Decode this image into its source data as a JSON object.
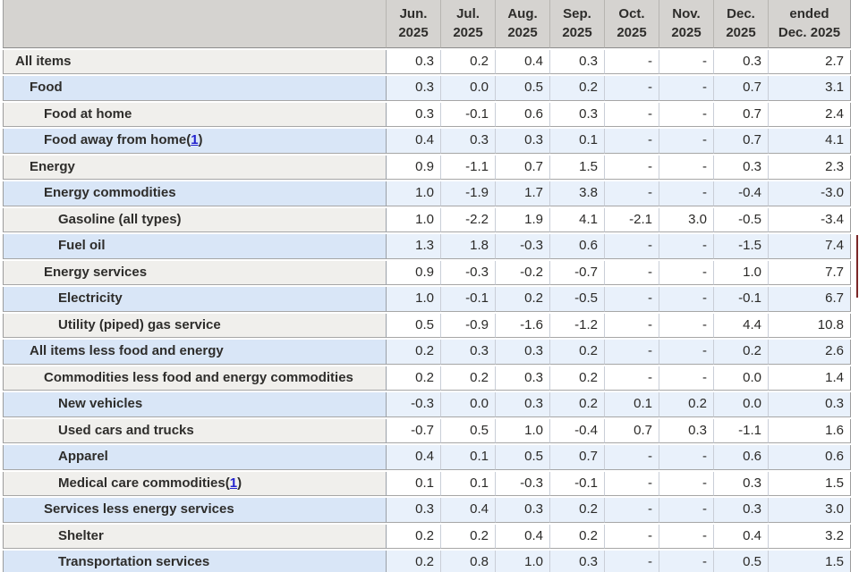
{
  "palette": {
    "header_bg": "#d5d3d0",
    "row_gray_stub": "#f0efec",
    "row_gray_value": "#ffffff",
    "row_blue_stub": "#d9e6f7",
    "row_blue_value": "#e9f1fb",
    "grid_line": "#a6a6a6",
    "strong_border": "#9c9c9c",
    "footnote_link": "#2323cf",
    "scrollbar_thumb": "#7b2727",
    "text": "#2e2d2b"
  },
  "table": {
    "footnote_wrap": [
      "(",
      ")"
    ],
    "columns": [
      {
        "line1": "Jun.",
        "line2": "2025"
      },
      {
        "line1": "Jul.",
        "line2": "2025"
      },
      {
        "line1": "Aug.",
        "line2": "2025"
      },
      {
        "line1": "Sep.",
        "line2": "2025"
      },
      {
        "line1": "Oct.",
        "line2": "2025"
      },
      {
        "line1": "Nov.",
        "line2": "2025"
      },
      {
        "line1": "Dec.",
        "line2": "2025"
      },
      {
        "line1": "ended",
        "line2": "Dec. 2025"
      }
    ],
    "rows": [
      {
        "label": "All items",
        "indent": 0,
        "footnote": null,
        "values": [
          "0.3",
          "0.2",
          "0.4",
          "0.3",
          "-",
          "-",
          "0.3",
          "2.7"
        ]
      },
      {
        "label": "Food",
        "indent": 1,
        "footnote": null,
        "values": [
          "0.3",
          "0.0",
          "0.5",
          "0.2",
          "-",
          "-",
          "0.7",
          "3.1"
        ]
      },
      {
        "label": "Food at home",
        "indent": 2,
        "footnote": null,
        "values": [
          "0.3",
          "-0.1",
          "0.6",
          "0.3",
          "-",
          "-",
          "0.7",
          "2.4"
        ]
      },
      {
        "label": "Food away from home",
        "indent": 2,
        "footnote": "1",
        "values": [
          "0.4",
          "0.3",
          "0.3",
          "0.1",
          "-",
          "-",
          "0.7",
          "4.1"
        ]
      },
      {
        "label": "Energy",
        "indent": 1,
        "footnote": null,
        "values": [
          "0.9",
          "-1.1",
          "0.7",
          "1.5",
          "-",
          "-",
          "0.3",
          "2.3"
        ]
      },
      {
        "label": "Energy commodities",
        "indent": 2,
        "footnote": null,
        "values": [
          "1.0",
          "-1.9",
          "1.7",
          "3.8",
          "-",
          "-",
          "-0.4",
          "-3.0"
        ]
      },
      {
        "label": "Gasoline (all types)",
        "indent": 3,
        "footnote": null,
        "values": [
          "1.0",
          "-2.2",
          "1.9",
          "4.1",
          "-2.1",
          "3.0",
          "-0.5",
          "-3.4"
        ]
      },
      {
        "label": "Fuel oil",
        "indent": 3,
        "footnote": null,
        "values": [
          "1.3",
          "1.8",
          "-0.3",
          "0.6",
          "-",
          "-",
          "-1.5",
          "7.4"
        ]
      },
      {
        "label": "Energy services",
        "indent": 2,
        "footnote": null,
        "values": [
          "0.9",
          "-0.3",
          "-0.2",
          "-0.7",
          "-",
          "-",
          "1.0",
          "7.7"
        ]
      },
      {
        "label": "Electricity",
        "indent": 3,
        "footnote": null,
        "values": [
          "1.0",
          "-0.1",
          "0.2",
          "-0.5",
          "-",
          "-",
          "-0.1",
          "6.7"
        ]
      },
      {
        "label": "Utility (piped) gas service",
        "indent": 3,
        "footnote": null,
        "values": [
          "0.5",
          "-0.9",
          "-1.6",
          "-1.2",
          "-",
          "-",
          "4.4",
          "10.8"
        ]
      },
      {
        "label": "All items less food and energy",
        "indent": 1,
        "footnote": null,
        "values": [
          "0.2",
          "0.3",
          "0.3",
          "0.2",
          "-",
          "-",
          "0.2",
          "2.6"
        ]
      },
      {
        "label": "Commodities less food and energy commodities",
        "indent": 2,
        "footnote": null,
        "values": [
          "0.2",
          "0.2",
          "0.3",
          "0.2",
          "-",
          "-",
          "0.0",
          "1.4"
        ]
      },
      {
        "label": "New vehicles",
        "indent": 3,
        "footnote": null,
        "values": [
          "-0.3",
          "0.0",
          "0.3",
          "0.2",
          "0.1",
          "0.2",
          "0.0",
          "0.3"
        ]
      },
      {
        "label": "Used cars and trucks",
        "indent": 3,
        "footnote": null,
        "values": [
          "-0.7",
          "0.5",
          "1.0",
          "-0.4",
          "0.7",
          "0.3",
          "-1.1",
          "1.6"
        ]
      },
      {
        "label": "Apparel",
        "indent": 3,
        "footnote": null,
        "values": [
          "0.4",
          "0.1",
          "0.5",
          "0.7",
          "-",
          "-",
          "0.6",
          "0.6"
        ]
      },
      {
        "label": "Medical care commodities",
        "indent": 3,
        "footnote": "1",
        "values": [
          "0.1",
          "0.1",
          "-0.3",
          "-0.1",
          "-",
          "-",
          "0.3",
          "1.5"
        ]
      },
      {
        "label": "Services less energy services",
        "indent": 2,
        "footnote": null,
        "values": [
          "0.3",
          "0.4",
          "0.3",
          "0.2",
          "-",
          "-",
          "0.3",
          "3.0"
        ]
      },
      {
        "label": "Shelter",
        "indent": 3,
        "footnote": null,
        "values": [
          "0.2",
          "0.2",
          "0.4",
          "0.2",
          "-",
          "-",
          "0.4",
          "3.2"
        ]
      },
      {
        "label": "Transportation services",
        "indent": 3,
        "footnote": null,
        "values": [
          "0.2",
          "0.8",
          "1.0",
          "0.3",
          "-",
          "-",
          "0.5",
          "1.5"
        ]
      }
    ]
  }
}
